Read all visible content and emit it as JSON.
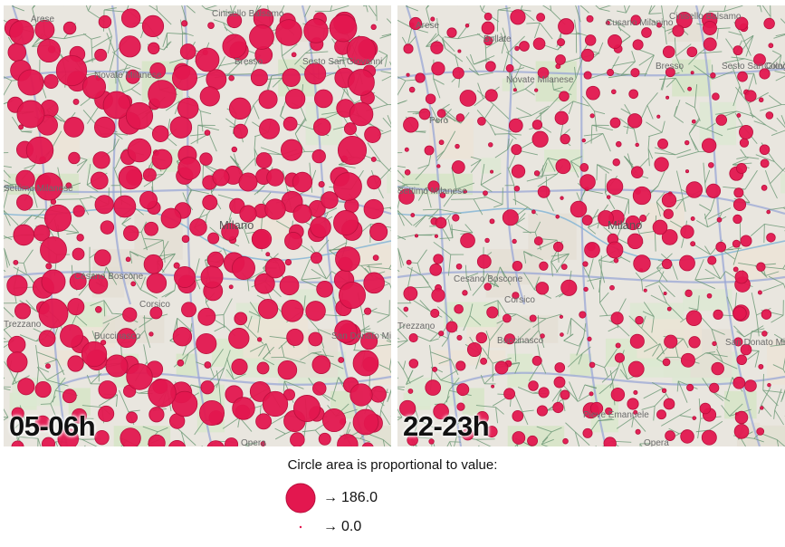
{
  "panels": [
    {
      "time_label": "05-06h",
      "places": [
        "Cinisello Balsamo",
        "Bresso",
        "Sesto San Giovanni",
        "Novate Milanese",
        "Settimo Milanese",
        "Milano",
        "Cesano Boscone",
        "Corsico",
        "Buccinasco",
        "Trezzano",
        "San Donato Milanese",
        "Opera",
        "Arese"
      ]
    },
    {
      "time_label": "22-23h",
      "places": [
        "Arese",
        "Bollate",
        "Cusano Milanino",
        "Cinisello Balsamo",
        "Bresso",
        "Sesto San Giovanni",
        "Cologno",
        "Novate Milanese",
        "Pero",
        "Settimo Milanese",
        "Milano",
        "Cesano Boscone",
        "Corsico",
        "Trezzano",
        "Buccinasco",
        "Pieve Emanuele",
        "San Donato Milanese",
        "Opera"
      ]
    }
  ],
  "legend": {
    "caption": "Circle area is proportional to value:",
    "max_value": "186.0",
    "min_value": "0.0",
    "arrow": "→",
    "circle_color": "#e3174f"
  },
  "colors": {
    "circle": "#e3174f",
    "circle_stroke": "#b80f3c",
    "voronoi": "#6f9a78",
    "road": "#9aa7d6",
    "water": "#7fb3d5",
    "map_bg": "#e9e6df"
  }
}
